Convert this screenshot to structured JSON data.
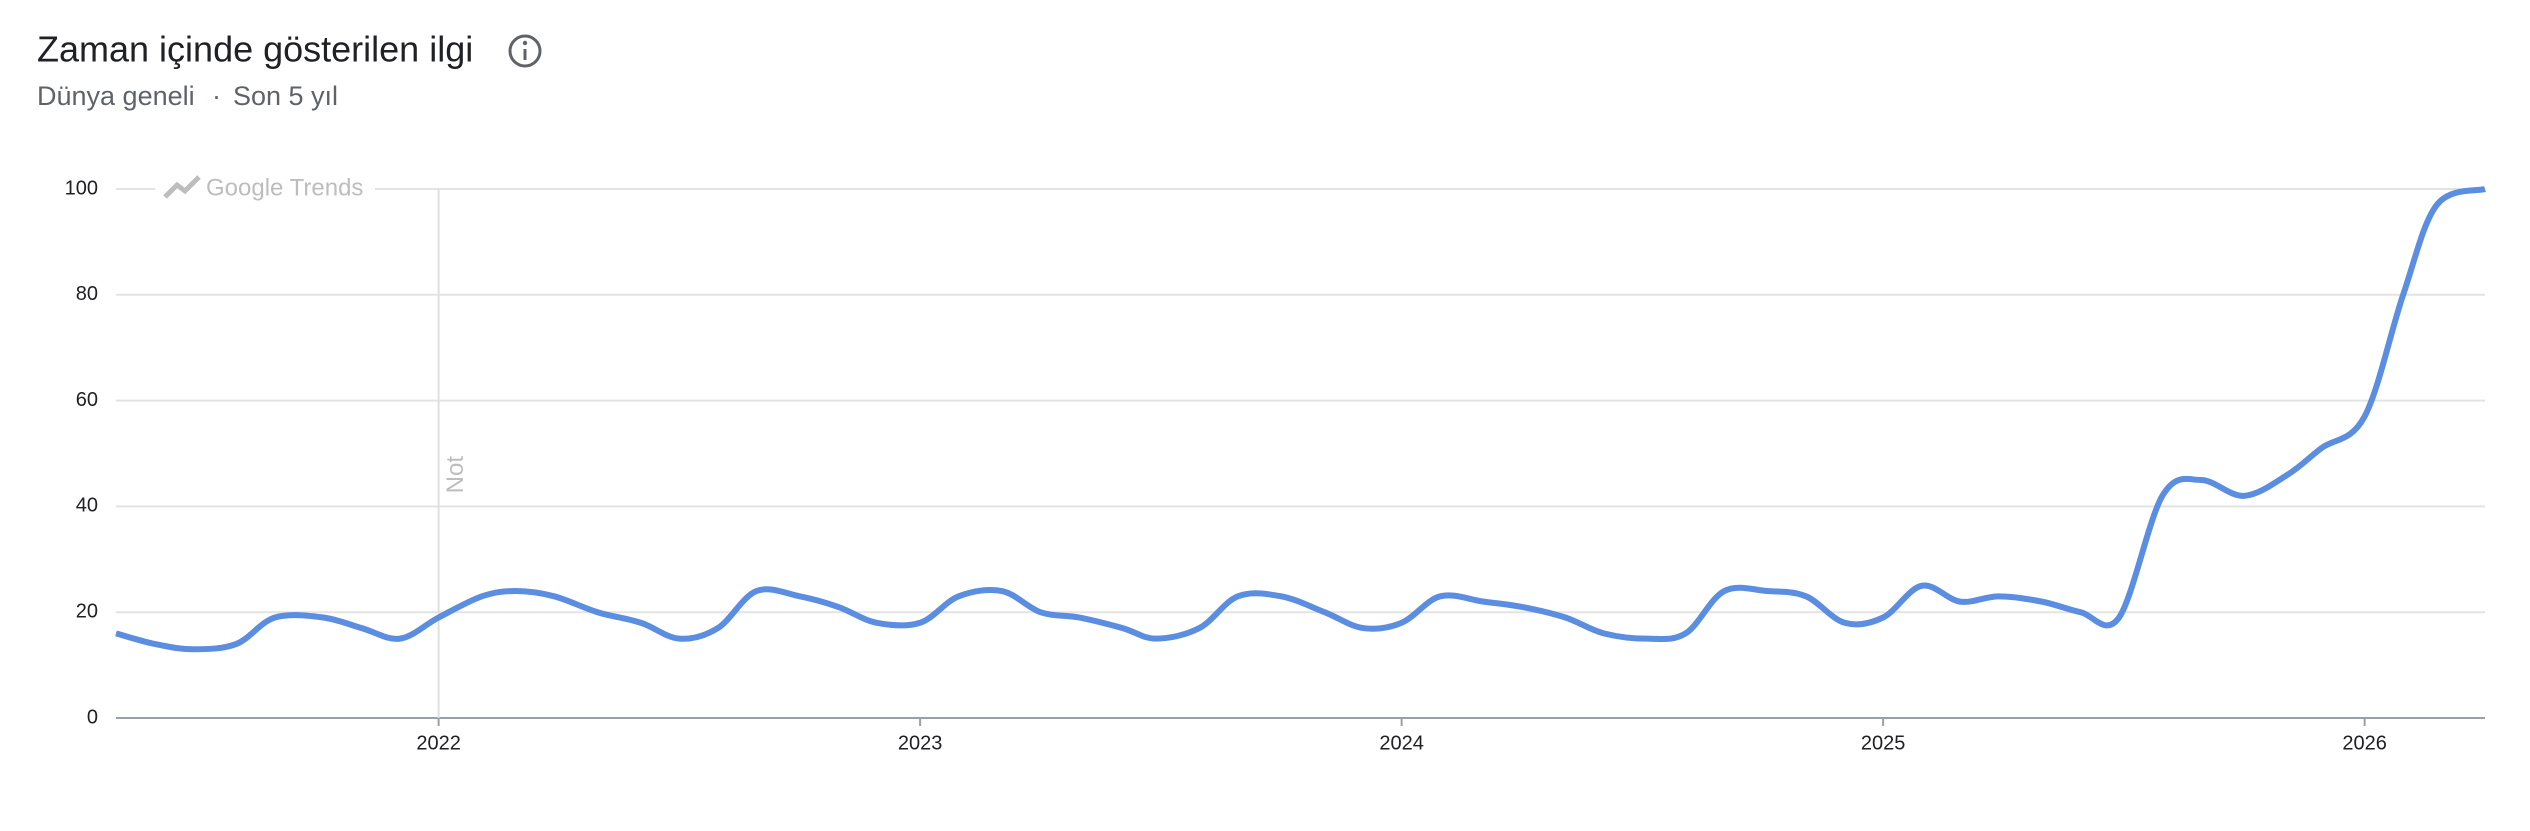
{
  "header": {
    "title": "Zaman içinde gösterilen ilgi",
    "region": "Dünya geneli",
    "separator": "·",
    "period": "Son 5 yıl"
  },
  "chart_data": {
    "type": "line",
    "watermark": "Google Trends",
    "annotation": "Not",
    "x": [
      2021.33,
      2021.41,
      2021.49,
      2021.58,
      2021.66,
      2021.76,
      2021.84,
      2021.92,
      2022.0,
      2022.09,
      2022.16,
      2022.24,
      2022.33,
      2022.42,
      2022.5,
      2022.58,
      2022.66,
      2022.75,
      2022.83,
      2022.91,
      2023.0,
      2023.08,
      2023.17,
      2023.25,
      2023.33,
      2023.42,
      2023.49,
      2023.58,
      2023.66,
      2023.75,
      2023.84,
      2023.92,
      2024.0,
      2024.08,
      2024.17,
      2024.25,
      2024.34,
      2024.42,
      2024.51,
      2024.59,
      2024.67,
      2024.76,
      2024.84,
      2024.92,
      2025.0,
      2025.08,
      2025.16,
      2025.24,
      2025.33,
      2025.41,
      2025.49,
      2025.58,
      2025.66,
      2025.75,
      2025.84,
      2025.91,
      2026.0,
      2026.08,
      2026.15,
      2026.25
    ],
    "series": [
      {
        "color": "#5b8de0",
        "values": [
          16,
          14,
          13,
          14,
          19,
          19,
          17,
          15,
          19,
          23,
          24,
          23,
          20,
          18,
          15,
          17,
          24,
          23,
          21,
          18,
          18,
          23,
          24,
          20,
          19,
          17,
          15,
          17,
          23,
          23,
          20,
          17,
          18,
          23,
          22,
          21,
          19,
          16,
          15,
          16,
          24,
          24,
          23,
          18,
          19,
          25,
          22,
          23,
          22,
          20,
          19,
          42,
          45,
          42,
          46,
          51,
          57,
          80,
          97,
          100
        ]
      }
    ],
    "xlim": [
      2021.33,
      2026.25
    ],
    "xticks": [
      2022,
      2023,
      2024,
      2025,
      2026
    ],
    "ylim": [
      0,
      100
    ],
    "yticks": [
      0,
      20,
      40,
      60,
      80,
      100
    ],
    "grid": true,
    "annotation_x": 2022
  }
}
